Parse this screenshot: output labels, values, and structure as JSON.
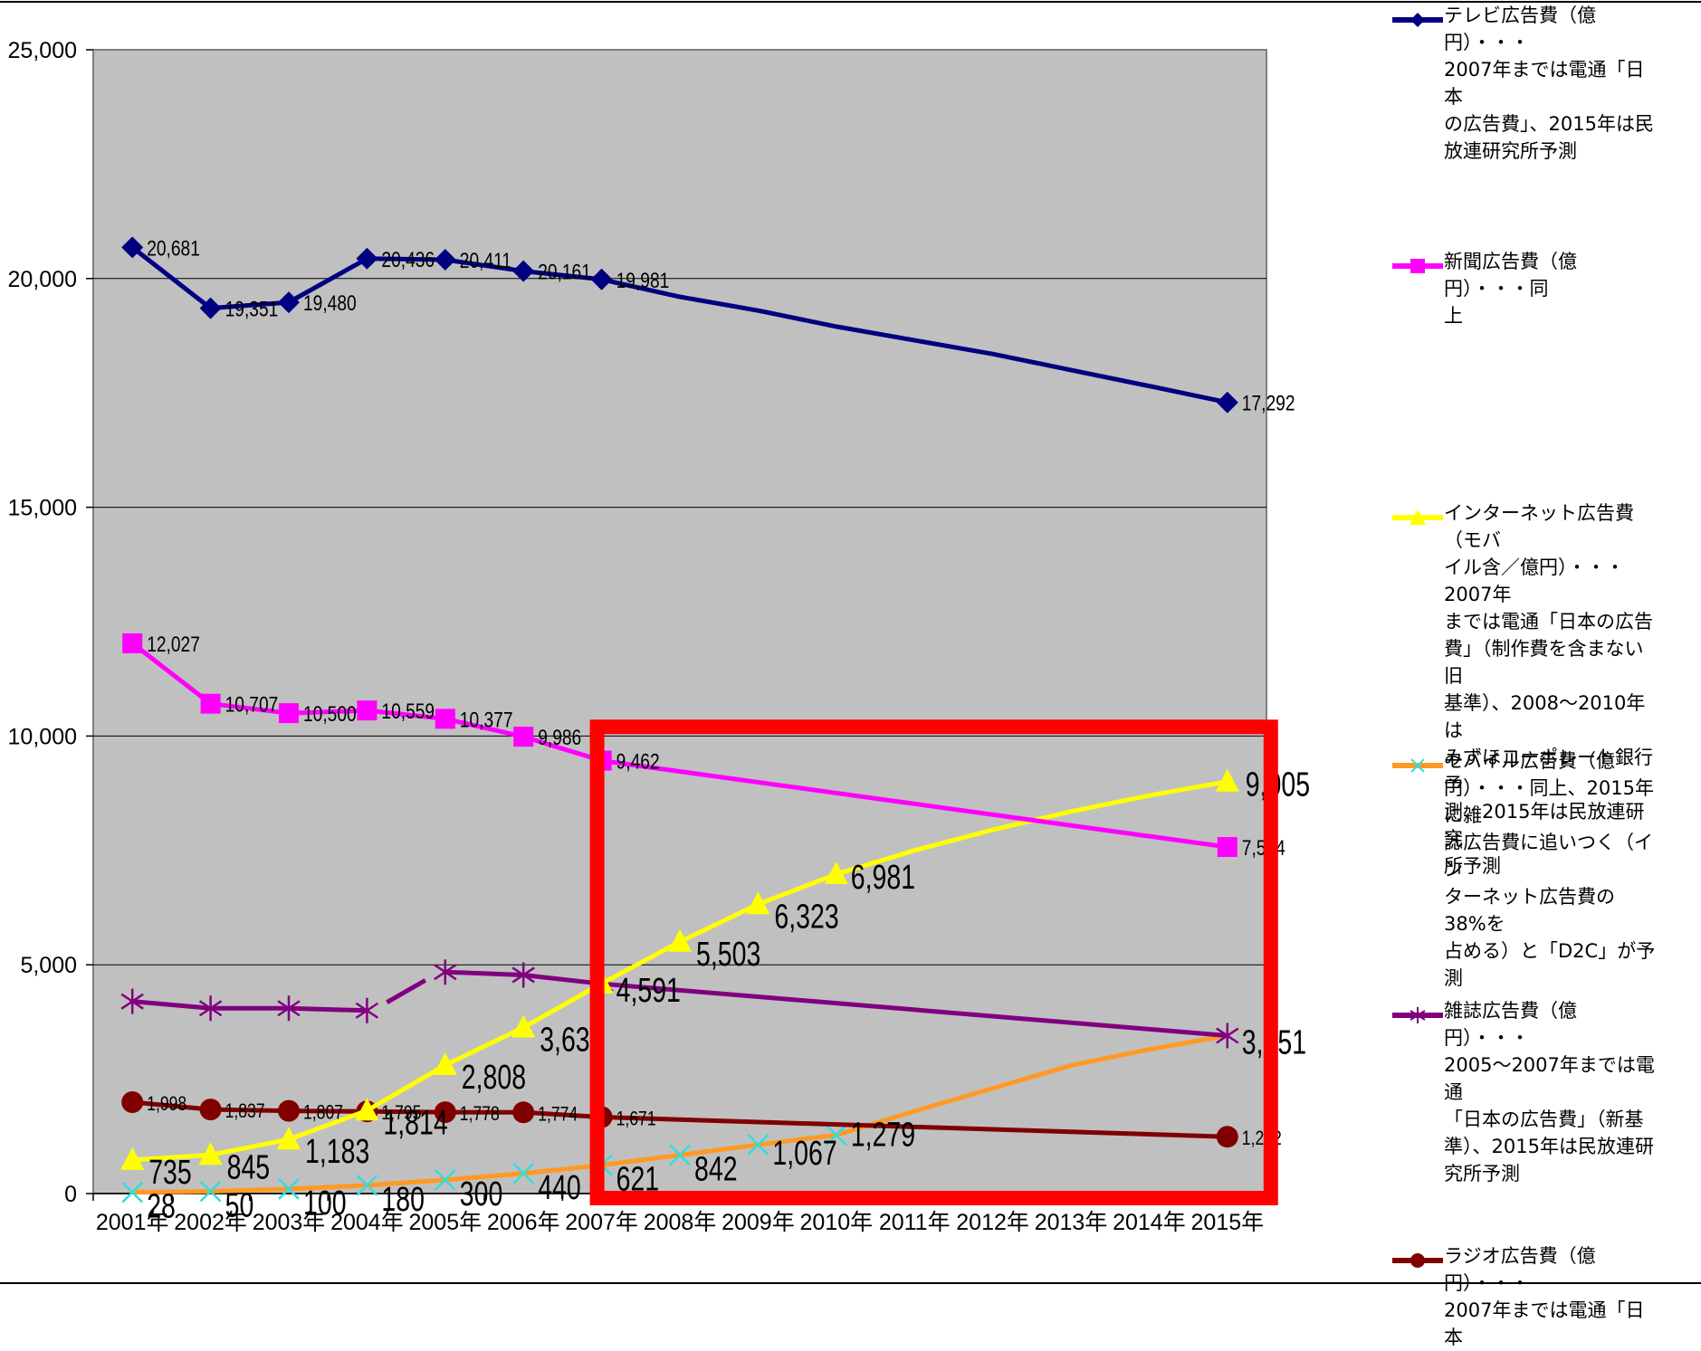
{
  "chart_data": {
    "type": "line",
    "categories": [
      "2001年",
      "2002年",
      "2003年",
      "2004年",
      "2005年",
      "2006年",
      "2007年",
      "2008年",
      "2009年",
      "2010年",
      "2011年",
      "2012年",
      "2013年",
      "2014年",
      "2015年"
    ],
    "ylim": [
      0,
      25000
    ],
    "yticks": [
      "0",
      "5,000",
      "10,000",
      "15,000",
      "20,000",
      "25,000"
    ],
    "ytick_values": [
      0,
      5000,
      10000,
      15000,
      20000,
      25000
    ],
    "grid": true,
    "legend_position": "right",
    "series": [
      {
        "name": "テレビ広告費（億円）・・・2007年までは電通「日本の広告費」、2015年は民放連研究所予測",
        "color": "#000080",
        "marker": "diamond",
        "values": [
          20681,
          19351,
          19480,
          20436,
          20411,
          20161,
          19981,
          19600,
          19300,
          18950,
          18650,
          18350,
          18000,
          17650,
          17292
        ],
        "markers": [
          0,
          1,
          2,
          3,
          4,
          5,
          6,
          14
        ],
        "labels": {
          "0": "20,681",
          "1": "19,351",
          "2": "19,480",
          "3": "20,436",
          "4": "20,411",
          "5": "20,161",
          "6": "19,981",
          "14": "17,292"
        }
      },
      {
        "name": "新聞広告費（億円）・・・同上",
        "color": "#ff00ff",
        "marker": "square",
        "values": [
          12027,
          10707,
          10500,
          10559,
          10377,
          9986,
          9462,
          null,
          null,
          null,
          null,
          null,
          null,
          null,
          7574
        ],
        "markers": [
          0,
          1,
          2,
          3,
          4,
          5,
          6,
          14
        ],
        "labels": {
          "0": "12,027",
          "1": "10,707",
          "2": "10,500",
          "3": "10,559",
          "4": "10,377",
          "5": "9,986",
          "6": "9,462",
          "14": "7,574"
        }
      },
      {
        "name": "インターネット広告費（モバイル含／億円）・・・2007年までは電通「日本の広告費」（制作費を含まない旧基準）、2008～2010年はみずほコーポレート銀行予測、2015年は民放連研究所予測",
        "color": "#ffff00",
        "marker": "triangle",
        "values": [
          735,
          845,
          1183,
          1814,
          2808,
          3630,
          4591,
          5503,
          6323,
          6981,
          7500,
          7950,
          8350,
          8700,
          9005
        ],
        "markers": [
          0,
          1,
          2,
          3,
          4,
          5,
          6,
          7,
          8,
          9,
          14
        ],
        "labels": {
          "0": "735",
          "1": "845",
          "2": "1,183",
          "3": "1,814",
          "4": "2,808",
          "5": "3,630",
          "6": "4,591",
          "7": "5,503",
          "8": "6,323",
          "9": "6,981",
          "14": "9,005"
        }
      },
      {
        "name": "モバイル広告費（億円）・・・同上、2015年に雑誌広告費に追いつく（インターネット広告費の38%を占める）と「D2C」が予測",
        "color": "#ff9922",
        "marker": "x",
        "values": [
          28,
          50,
          100,
          180,
          300,
          440,
          621,
          842,
          1067,
          1279,
          1800,
          2300,
          2800,
          3150,
          3451
        ],
        "markers": [
          0,
          1,
          2,
          3,
          4,
          5,
          6,
          7,
          8,
          9
        ],
        "labels": {
          "0": "28",
          "1": "50",
          "2": "100",
          "3": "180",
          "4": "300",
          "5": "440",
          "6": "621",
          "7": "842",
          "8": "1,067",
          "9": "1,279"
        }
      },
      {
        "name": "雑誌広告費（億円）・・・2005～2007年までは電通「日本の広告費」（新基準）、2015年は民放連研究所予測",
        "color": "#800080",
        "marker": "asterisk",
        "values": [
          4200,
          4050,
          4050,
          4000,
          4842,
          4777,
          4585,
          null,
          null,
          null,
          null,
          null,
          null,
          null,
          3451
        ],
        "markers": [
          0,
          1,
          2,
          3,
          4,
          5,
          6,
          14
        ],
        "labels": {
          "14": "3,451"
        }
      },
      {
        "name": "ラジオ広告費（億円）・・・2007年までは電通「日本の広告費」",
        "color": "#800000",
        "marker": "circle",
        "values": [
          1998,
          1837,
          1807,
          1795,
          1778,
          1774,
          1671,
          null,
          null,
          null,
          null,
          null,
          null,
          null,
          1242
        ],
        "markers": [
          0,
          1,
          2,
          3,
          4,
          5,
          6,
          14
        ],
        "labels": {
          "0": "1,998",
          "1": "1,837",
          "2": "1,807",
          "3": "1,795",
          "4": "1,778",
          "5": "1,774",
          "6": "1,671",
          "14": "1,242"
        }
      }
    ],
    "highlight_box": {
      "from_category": "2007年",
      "to_category": "2015年",
      "ymax": 10200,
      "color": "#ff0000"
    }
  },
  "legend": {
    "tv": {
      "lines": [
        "テレビ広告費（億円）・・・",
        "2007年までは電通「日本",
        "の広告費」、2015年は民",
        "放連研究所予測"
      ]
    },
    "newspaper": {
      "lines": [
        "新聞広告費（億円）・・・同",
        "上"
      ]
    },
    "internet": {
      "lines": [
        "インターネット広告費（モバ",
        "イル含／億円）・・・2007年",
        "までは電通「日本の広告",
        "費」（制作費を含まない旧",
        "基準）、2008～2010年は",
        "みずほコーポレート銀行予",
        "測、2015年は民放連研究",
        "所予測"
      ]
    },
    "mobile": {
      "lines": [
        "モバイル広告費（億",
        "円）・・・同上、2015年に雑",
        "誌広告費に追いつく（イン",
        "ターネット広告費の38%を",
        "占める）と「D2C」が予測"
      ]
    },
    "magazine": {
      "lines": [
        "雑誌広告費（億円）・・・",
        "2005～2007年までは電通",
        "「日本の広告費」（新基",
        "準）、2015年は民放連研",
        "究所予測"
      ]
    },
    "radio": {
      "lines": [
        "ラジオ広告費（億円）・・・",
        "2007年までは電通「日本"
      ]
    }
  }
}
